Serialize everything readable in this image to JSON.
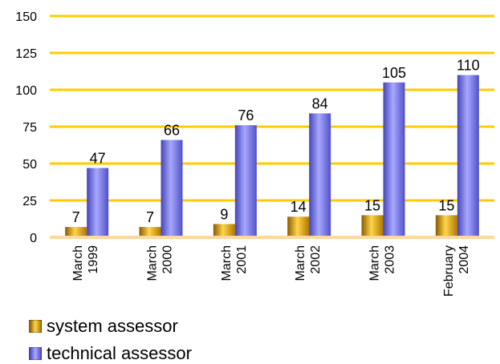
{
  "chart_data": {
    "type": "bar",
    "categories": [
      [
        "March",
        "1999"
      ],
      [
        "March",
        "2000"
      ],
      [
        "March",
        "2001"
      ],
      [
        "March",
        "2002"
      ],
      [
        "March",
        "2003"
      ],
      [
        "February",
        "2004"
      ]
    ],
    "series": [
      {
        "name": "system assessor",
        "values": [
          7,
          7,
          9,
          14,
          15,
          15
        ],
        "color": "#d4a017"
      },
      {
        "name": "technical assessor",
        "values": [
          47,
          66,
          76,
          84,
          105,
          110
        ],
        "color": "#7b7bf0"
      }
    ],
    "ylim": [
      0,
      150
    ],
    "yticks": [
      0,
      25,
      50,
      75,
      100,
      125,
      150
    ],
    "gridline_color": "#ffcc00",
    "baseline_color": "#ffd7a0",
    "grid": true,
    "legend_position": "bottom-left",
    "title": "",
    "xlabel": "",
    "ylabel": ""
  }
}
